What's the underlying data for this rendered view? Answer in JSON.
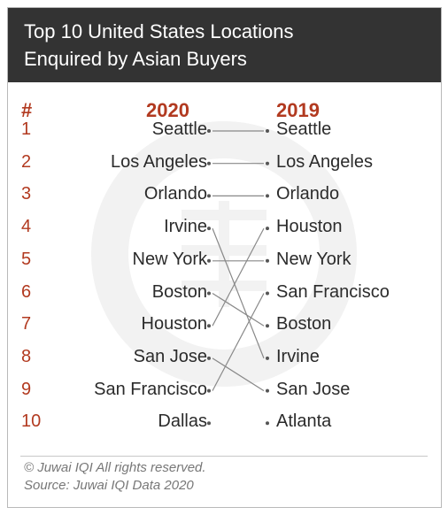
{
  "header": {
    "title_line1": "Top 10 United States Locations",
    "title_line2": "Enquired by Asian Buyers"
  },
  "columns": {
    "rank": "#",
    "year_left": "2020",
    "year_right": "2019"
  },
  "ranks": [
    "1",
    "2",
    "3",
    "4",
    "5",
    "6",
    "7",
    "8",
    "9",
    "10"
  ],
  "cities_2020": [
    "Seattle",
    "Los Angeles",
    "Orlando",
    "Irvine",
    "New York",
    "Boston",
    "Houston",
    "San Jose",
    "San Francisco",
    "Dallas"
  ],
  "cities_2019": [
    "Seattle",
    "Los Angeles",
    "Orlando",
    "Houston",
    "New York",
    "San Francisco",
    "Boston",
    "Irvine",
    "San Jose",
    "Atlanta"
  ],
  "footer": {
    "line1": "© Juwai IQI All rights reserved.",
    "line2": "Source: Juwai IQI Data 2020"
  },
  "colors": {
    "header_bg": "#333333",
    "accent": "#b23a20",
    "text": "#2b2b2b",
    "connector": "#888888"
  }
}
